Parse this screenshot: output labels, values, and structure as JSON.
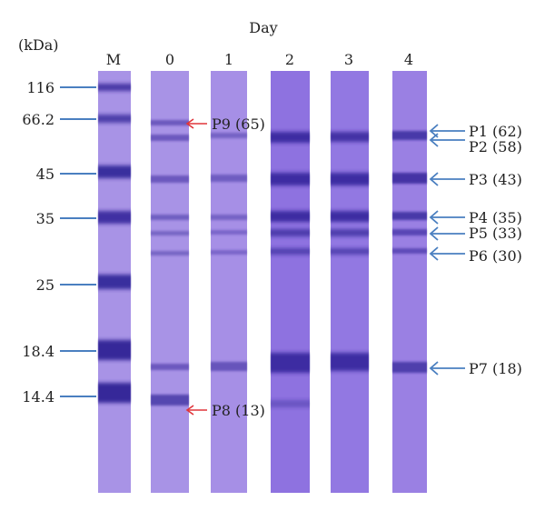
{
  "figure": {
    "day_label": "Day",
    "unit_label": "(kDa)",
    "lanes": [
      {
        "label": "M"
      },
      {
        "label": "0"
      },
      {
        "label": "1"
      },
      {
        "label": "2"
      },
      {
        "label": "3"
      },
      {
        "label": "4"
      }
    ],
    "markers": [
      {
        "label": "116"
      },
      {
        "label": "66.2"
      },
      {
        "label": "45"
      },
      {
        "label": "35"
      },
      {
        "label": "25"
      },
      {
        "label": "18.4"
      },
      {
        "label": "14.4"
      }
    ],
    "left_annotations": [
      {
        "label": "P9 (65)"
      },
      {
        "label": "P8 (13)"
      }
    ],
    "right_annotations": [
      {
        "label": "P1 (62)"
      },
      {
        "label": "P2 (58)"
      },
      {
        "label": "P3 (43)"
      },
      {
        "label": "P4 (35)"
      },
      {
        "label": "P5 (33)"
      },
      {
        "label": "P6 (30)"
      },
      {
        "label": "P7 (18)"
      }
    ],
    "colors": {
      "lane_bg": "#a78ce6",
      "band": "#2e2296",
      "marker_line": "#4a7fc0",
      "red_arrow": "#e0353a",
      "blue_arrow": "#4a7fc0"
    }
  }
}
